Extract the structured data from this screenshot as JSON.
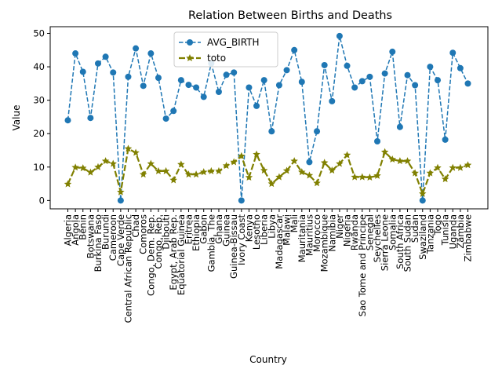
{
  "chart_data": {
    "type": "line",
    "title": "Relation Between Births and Deaths",
    "xlabel": "Country",
    "ylabel": "Value",
    "ylim": [
      -2.5,
      52
    ],
    "yticks": [
      0,
      10,
      20,
      30,
      40,
      50
    ],
    "grid": false,
    "legend_position": "top-center",
    "categories": [
      "Algeria",
      "Angola",
      "Benin",
      "Botswana",
      "Burkina Faso",
      "Burundi",
      "Cameroon",
      "Cape Verde",
      "Central African Republic",
      "Chad",
      "Comoros",
      "Congo, Dem. Rep.",
      "Congo, Rep.",
      "Djibouti",
      "Egypt, Arab Rep.",
      "Equatorial Guinea",
      "Eritrea",
      "Ethiopia",
      "Gabon",
      "Gambia, The",
      "Ghana",
      "Guinea",
      "Guinea-Bissau",
      "Ivory Coast",
      "Kenya",
      "Lesotho",
      "Liberia",
      "Libya",
      "Madagascar",
      "Malawi",
      "Mali",
      "Mauritania",
      "Mauritius",
      "Morocco",
      "Mozambique",
      "Namibia",
      "Niger",
      "Nigeria",
      "Rwanda",
      "Sao Tome and Principe",
      "Senegal",
      "Seychelles",
      "Sierra Leone",
      "Somalia",
      "South Africa",
      "South Sudan",
      "Sudan",
      "Swaziland",
      "Tanzania",
      "Togo",
      "Tunisia",
      "Uganda",
      "Zambia",
      "Zimbabwe"
    ],
    "series": [
      {
        "name": "AVG_BIRTH",
        "color": "#1f77b4",
        "values": [
          24,
          44,
          38.5,
          24.7,
          41,
          43,
          38.3,
          0,
          37,
          45.5,
          34.3,
          44,
          36.7,
          24.5,
          26.8,
          36,
          34.6,
          33.8,
          31,
          41,
          32.5,
          37.6,
          38.3,
          0,
          33.8,
          28.3,
          36,
          20.7,
          34.5,
          39,
          45,
          35.5,
          11.5,
          20.7,
          40.5,
          29.7,
          49.2,
          40.3,
          33.8,
          35.7,
          37,
          17.7,
          38,
          44.5,
          22,
          37.5,
          34.5,
          0,
          40,
          36,
          18.2,
          44.2,
          39.6,
          35
        ]
      },
      {
        "name": "toto",
        "color": "#808000",
        "values": [
          4.9,
          9.9,
          9.7,
          8.4,
          10,
          11.8,
          11,
          2.5,
          15.5,
          14.3,
          7.8,
          11,
          8.8,
          8.8,
          6.1,
          10.8,
          7.8,
          7.8,
          8.5,
          8.8,
          8.8,
          10.4,
          11.5,
          13.3,
          6.9,
          13.8,
          9,
          5,
          7,
          8.9,
          11.8,
          8.5,
          7.5,
          5.2,
          11.3,
          9,
          11,
          13.6,
          7,
          7,
          6.9,
          7.4,
          14.5,
          12.3,
          11.8,
          11.8,
          8.2,
          2,
          8.2,
          9.8,
          6.4,
          9.8,
          9.8,
          10.6
        ]
      }
    ]
  }
}
